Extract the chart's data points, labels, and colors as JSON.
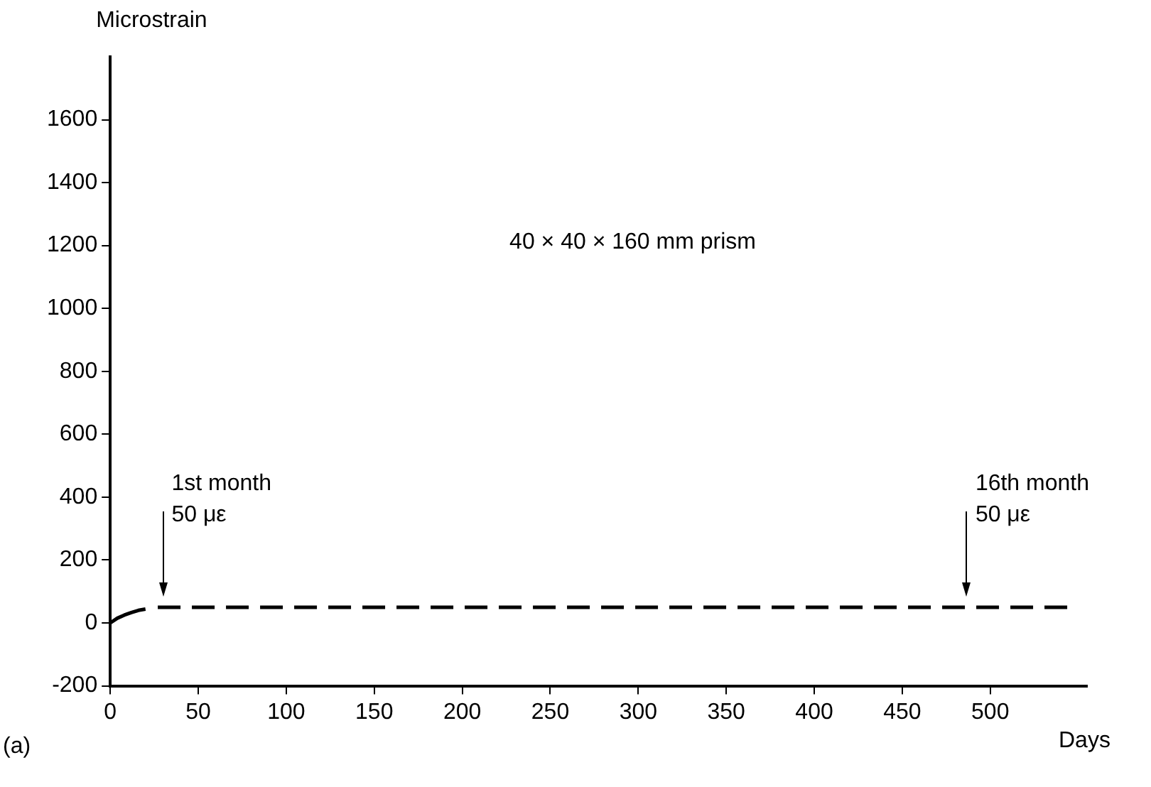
{
  "chart_data": {
    "type": "line",
    "xlabel": "Days",
    "ylabel": "Microstrain",
    "xlim": [
      0,
      555
    ],
    "xticks": [
      0,
      50,
      100,
      150,
      200,
      250,
      300,
      350,
      400,
      450,
      500
    ],
    "ylim": [
      -200,
      1800
    ],
    "yticks": [
      -200,
      0,
      200,
      400,
      600,
      800,
      1000,
      1200,
      1400,
      1600
    ],
    "grid": false,
    "legend": false,
    "marker": "none",
    "series": [
      {
        "color": "#000000",
        "line_style": "solid",
        "x": [
          0,
          4,
          8,
          12,
          16,
          20
        ],
        "values": [
          0,
          15,
          25,
          33,
          40,
          44
        ]
      },
      {
        "color": "#000000",
        "line_style": "dashed",
        "x": [
          27,
          100,
          200,
          300,
          400,
          500,
          545
        ],
        "values": [
          50,
          50,
          50,
          50,
          50,
          50,
          50
        ]
      }
    ],
    "annotations": [
      "40 × 40 × 160 mm prism",
      "1st month\n50 με",
      "16th month\n50 με",
      "(a)"
    ]
  }
}
